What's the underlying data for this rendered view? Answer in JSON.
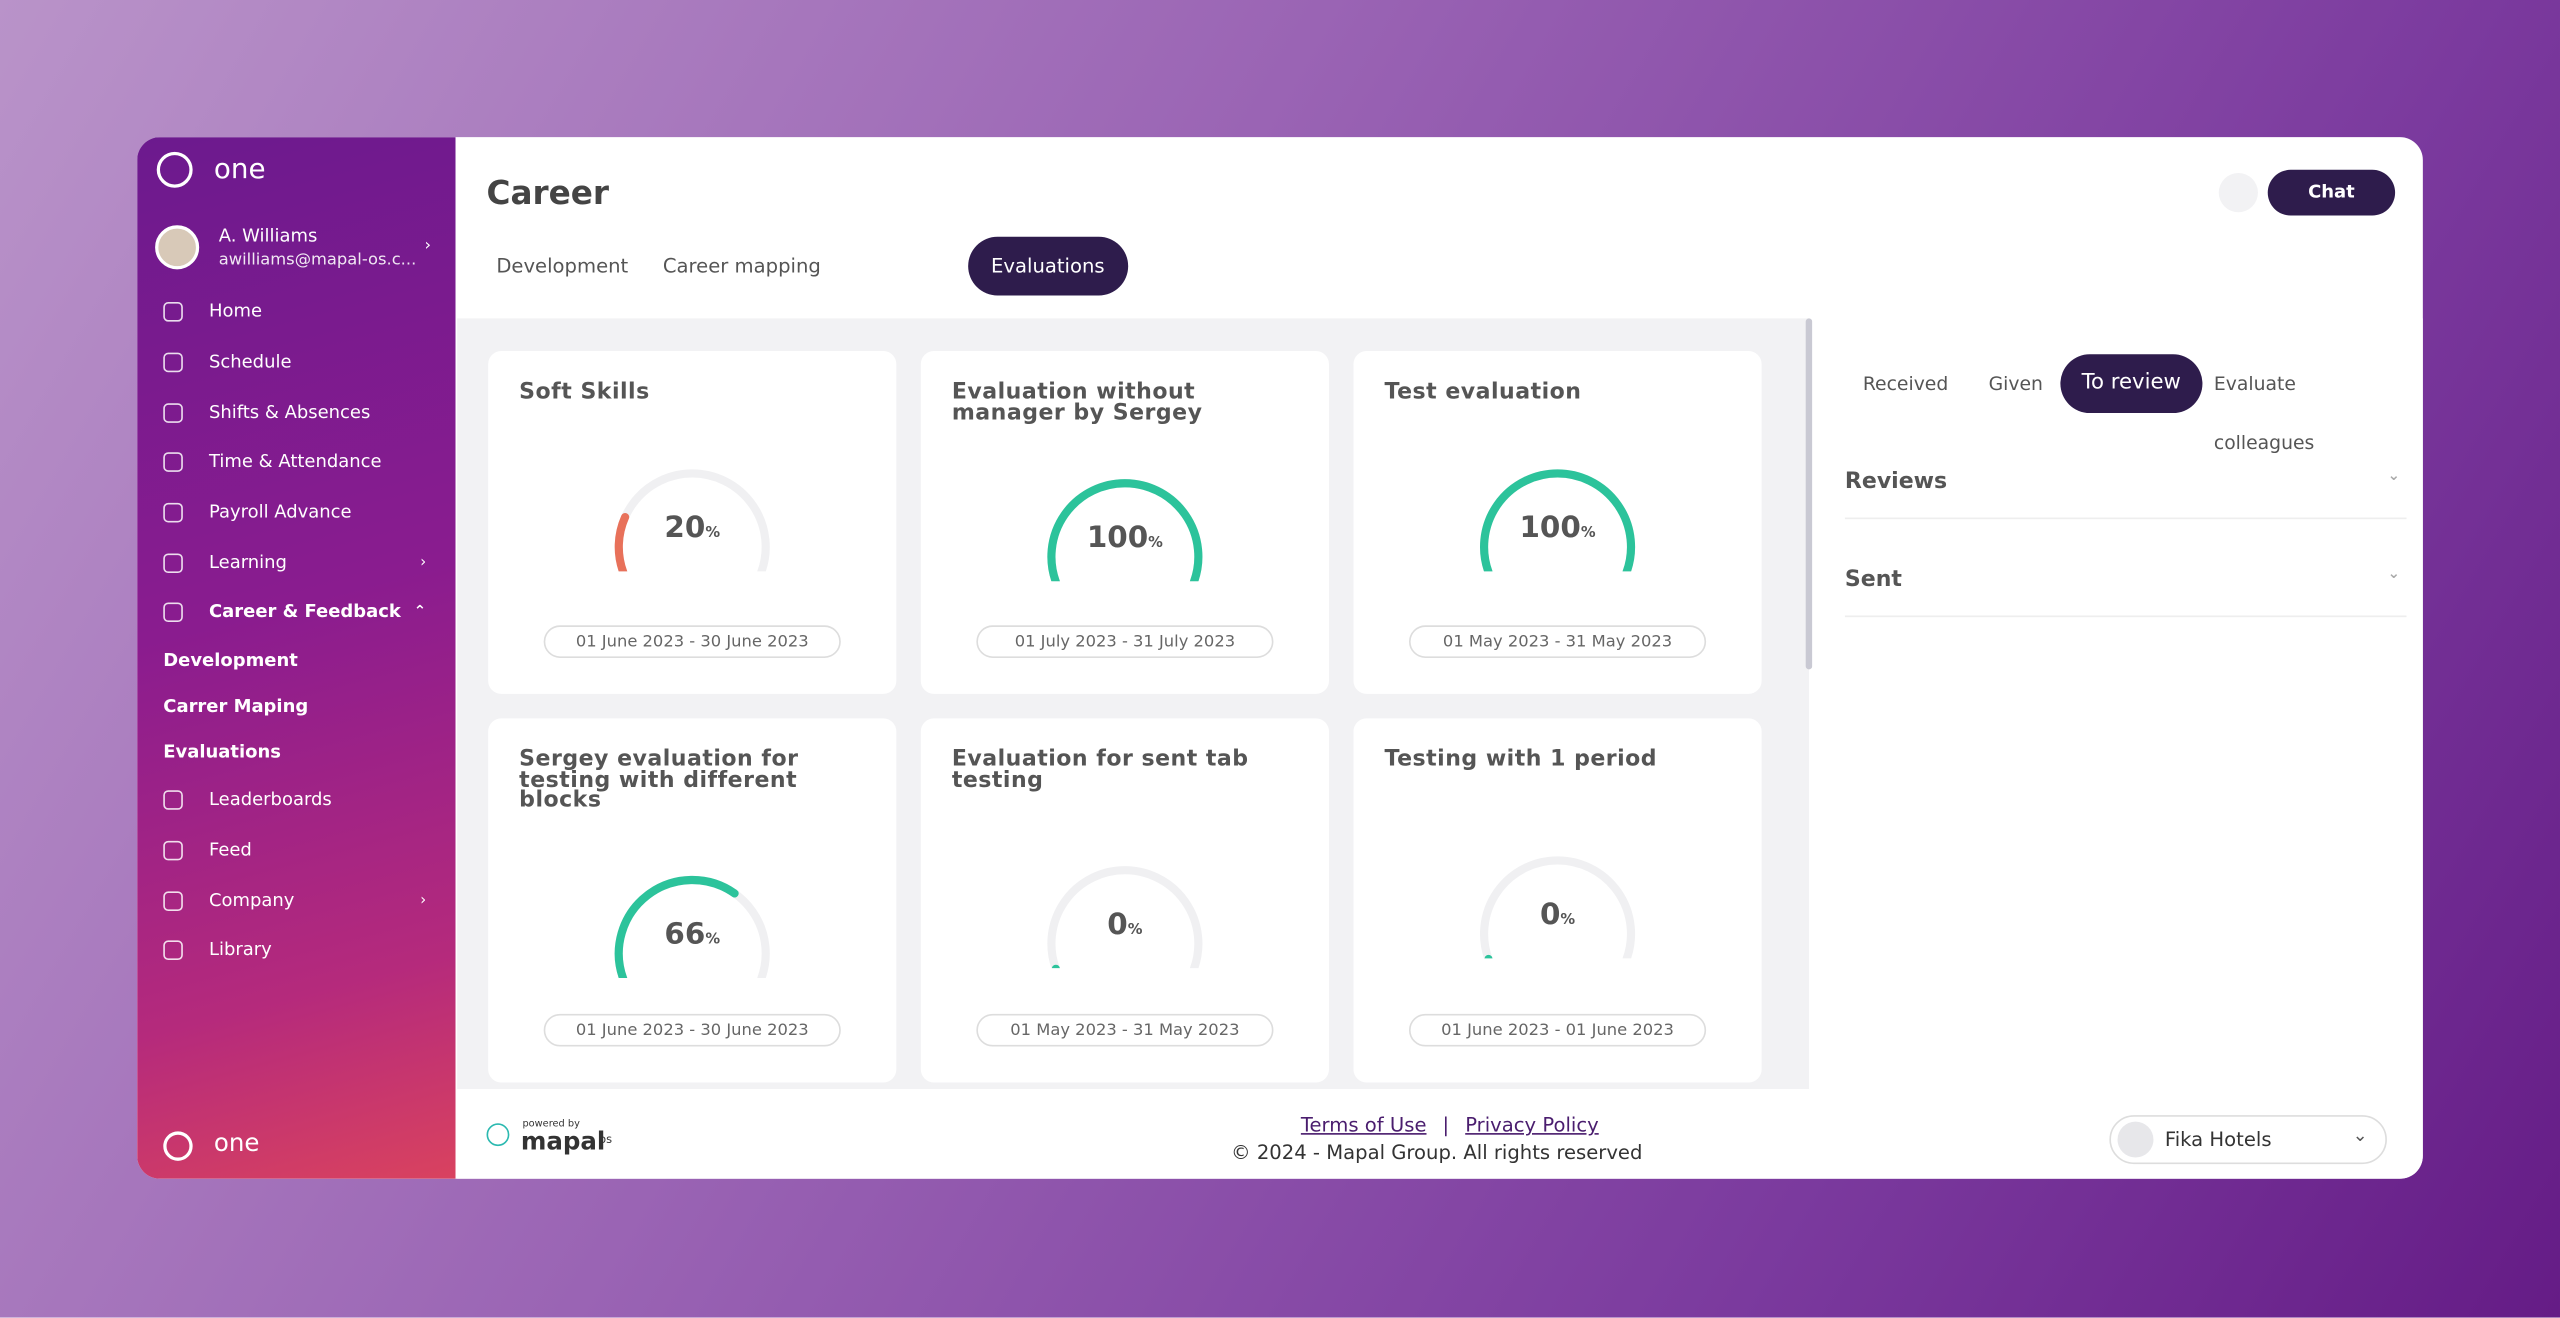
{
  "sidebar": {
    "brand": "one",
    "user": {
      "name": "A. Williams",
      "email": "awilliams@mapal-os.c..."
    },
    "nav": [
      {
        "label": "Home"
      },
      {
        "label": "Schedule"
      },
      {
        "label": "Shifts & Absences"
      },
      {
        "label": "Time & Attendance"
      },
      {
        "label": "Payroll Advance"
      },
      {
        "label": "Learning",
        "chevron": "right"
      },
      {
        "label": "Career & Feedback",
        "chevron": "up",
        "active": true
      },
      {
        "label": "Development",
        "sub": true
      },
      {
        "label": "Carrer Maping",
        "sub": true
      },
      {
        "label": "Evaluations",
        "sub": true
      },
      {
        "label": "Leaderboards"
      },
      {
        "label": "Feed"
      },
      {
        "label": "Company",
        "chevron": "right"
      },
      {
        "label": "Library"
      }
    ],
    "footer_brand": "one"
  },
  "header": {
    "title": "Career",
    "tabs": [
      {
        "label": "Development"
      },
      {
        "label": "Career mapping"
      },
      {
        "label": "Evaluations",
        "active": true
      }
    ],
    "chat": "Chat"
  },
  "cards": [
    {
      "title": "Soft Skills",
      "value": 20,
      "unit": "%",
      "period": "01 June 2023 - 30 June 2023",
      "color": "#e8715a"
    },
    {
      "title": "Evaluation without manager by Sergey",
      "value": 100,
      "unit": "%",
      "period": "01 July 2023 - 31 July 2023",
      "color": "#2cc39b"
    },
    {
      "title": "Test evaluation",
      "value": 100,
      "unit": "%",
      "period": "01 May 2023 - 31 May 2023",
      "color": "#2cc39b"
    },
    {
      "title": "Sergey evaluation for testing with different blocks",
      "value": 66,
      "unit": "%",
      "period": "01 June 2023 - 30 June 2023",
      "color": "#2cc39b"
    },
    {
      "title": "Evaluation for sent tab testing",
      "value": 0,
      "unit": "%",
      "period": "01 May 2023 - 31 May 2023",
      "color": "#2cc39b"
    },
    {
      "title": "Testing with 1 period",
      "value": 0,
      "unit": "%",
      "period": "01 June 2023 - 01 June 2023",
      "color": "#2cc39b"
    }
  ],
  "panel": {
    "tabs": [
      {
        "label": "Received"
      },
      {
        "label": "Given"
      },
      {
        "label": "To review",
        "active": true
      },
      {
        "label": "Evaluate colleagues"
      }
    ],
    "sections": [
      "Reviews",
      "Sent"
    ]
  },
  "footer": {
    "powered_by": "powered by",
    "logo": "mapal",
    "logo_suffix": "os",
    "terms": "Terms of Use",
    "separator": "|",
    "privacy": "Privacy Policy",
    "copyright": "© 2024 - Mapal Group. All rights reserved",
    "company": "Fika Hotels"
  }
}
